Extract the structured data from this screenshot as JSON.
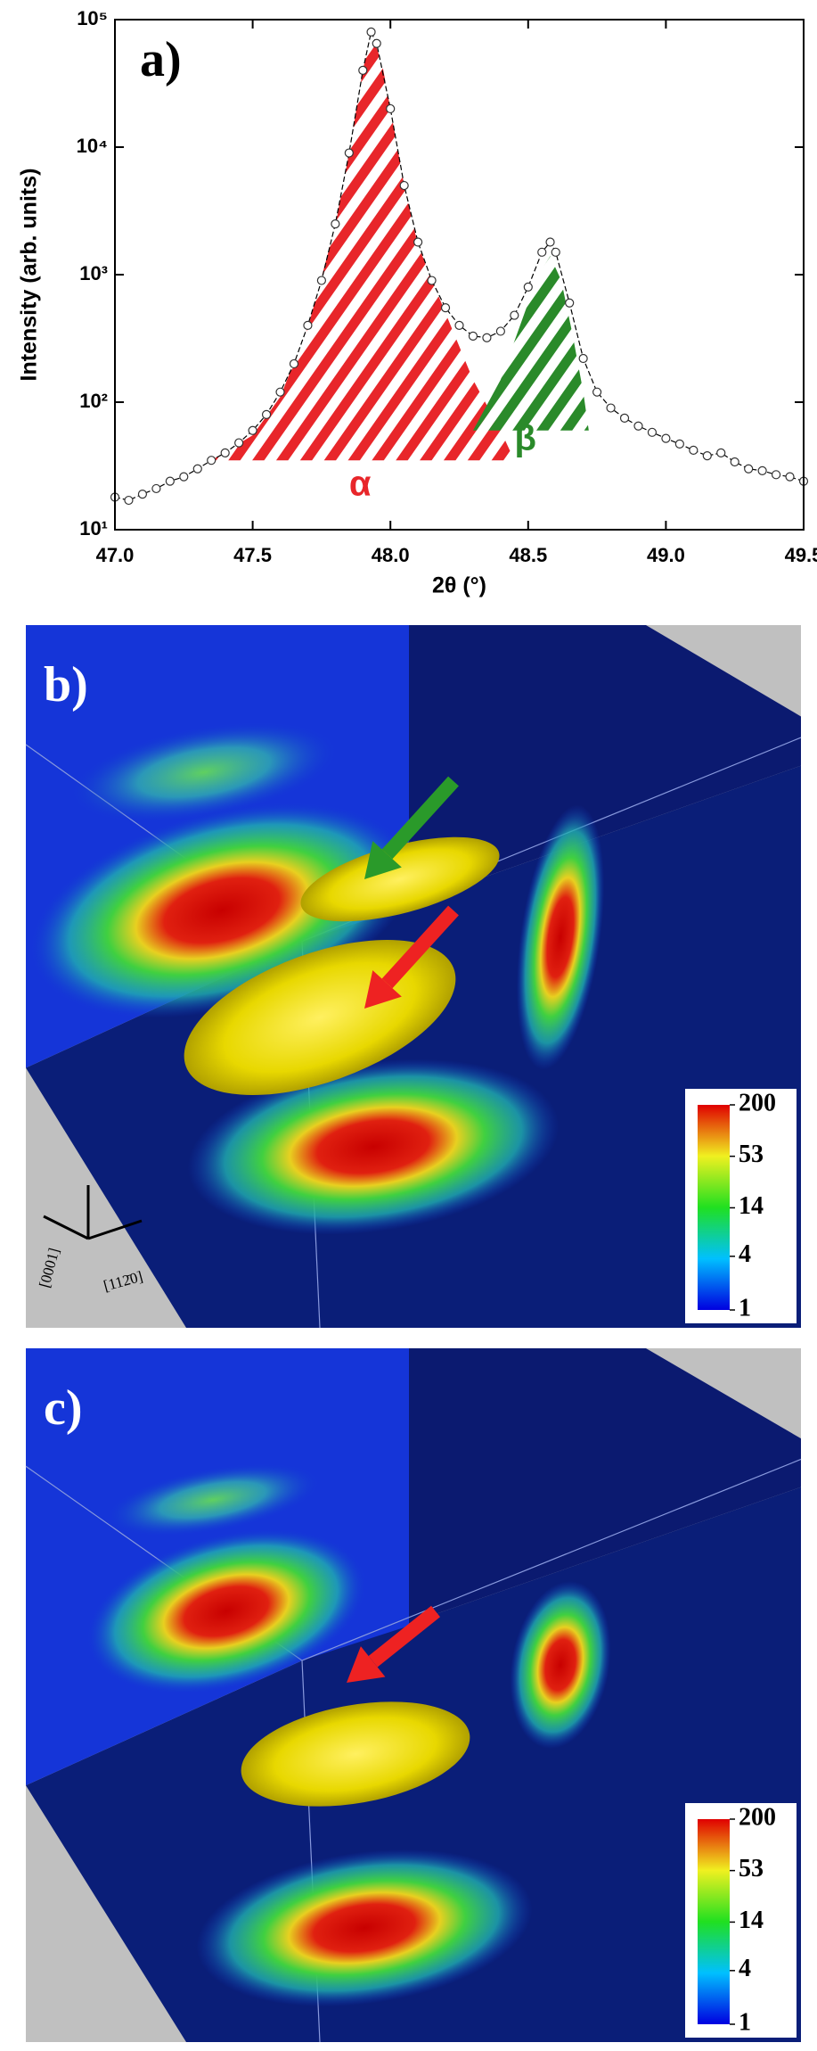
{
  "chart_data": {
    "type": "scatter",
    "panel_label": "a)",
    "x_label": "2θ (°)",
    "y_label": "Intensity (arb. units)",
    "xlim": [
      47.0,
      49.5
    ],
    "xticks": [
      {
        "value": 47.0,
        "label": "47.0"
      },
      {
        "value": 47.5,
        "label": "47.5"
      },
      {
        "value": 48.0,
        "label": "48.0"
      },
      {
        "value": 48.5,
        "label": "48.5"
      },
      {
        "value": 49.0,
        "label": "49.0"
      },
      {
        "value": 49.5,
        "label": "49.5"
      }
    ],
    "ylim": [
      10,
      100000
    ],
    "ylog": true,
    "yticks": [
      {
        "value": 10,
        "label": "10¹"
      },
      {
        "value": 100,
        "label": "10²"
      },
      {
        "value": 1000,
        "label": "10³"
      },
      {
        "value": 10000,
        "label": "10⁴"
      },
      {
        "value": 100000,
        "label": "10⁵"
      }
    ],
    "x": [
      47.0,
      47.05,
      47.1,
      47.15,
      47.2,
      47.25,
      47.3,
      47.35,
      47.4,
      47.45,
      47.5,
      47.55,
      47.6,
      47.65,
      47.7,
      47.75,
      47.8,
      47.85,
      47.9,
      47.93,
      47.95,
      48.0,
      48.05,
      48.1,
      48.15,
      48.2,
      48.25,
      48.3,
      48.35,
      48.4,
      48.45,
      48.5,
      48.55,
      48.58,
      48.6,
      48.65,
      48.7,
      48.75,
      48.8,
      48.85,
      48.9,
      48.95,
      49.0,
      49.05,
      49.1,
      49.15,
      49.2,
      49.25,
      49.3,
      49.35,
      49.4,
      49.45,
      49.5
    ],
    "values": [
      18,
      17,
      19,
      21,
      24,
      26,
      30,
      35,
      40,
      48,
      60,
      80,
      120,
      200,
      400,
      900,
      2500,
      9000,
      40000,
      80000,
      65000,
      20000,
      5000,
      1800,
      900,
      550,
      400,
      330,
      320,
      360,
      480,
      800,
      1500,
      1800,
      1500,
      600,
      220,
      120,
      90,
      75,
      65,
      58,
      52,
      47,
      42,
      38,
      40,
      34,
      30,
      29,
      27,
      26,
      24
    ],
    "point_color": "#ffffff",
    "fits": [
      {
        "label": "α",
        "color": "#e8262a",
        "x": [
          47.35,
          47.5,
          47.6,
          47.7,
          47.8,
          47.85,
          47.9,
          47.93,
          47.97,
          48.0,
          48.05,
          48.1,
          48.2,
          48.3,
          48.4,
          48.45
        ],
        "values": [
          35,
          55,
          110,
          380,
          2400,
          9000,
          40000,
          80000,
          45000,
          20000,
          5000,
          1700,
          500,
          150,
          60,
          35
        ],
        "label_x": 47.89,
        "label_y": 22
      },
      {
        "label": "β",
        "color": "#2a8a2a",
        "x": [
          48.3,
          48.4,
          48.45,
          48.5,
          48.55,
          48.58,
          48.62,
          48.66,
          48.7,
          48.72
        ],
        "values": [
          60,
          150,
          300,
          600,
          1100,
          1400,
          900,
          350,
          120,
          60
        ],
        "label_x": 48.49,
        "label_y": 50
      }
    ]
  },
  "panels": [
    {
      "label": "b)",
      "axis_up": "[0001]",
      "axis_right": "[112̄0]",
      "colorbar_lim": [
        1,
        200
      ],
      "colorbar_ticks": [
        200,
        53,
        14,
        4,
        1
      ]
    },
    {
      "label": "c)",
      "colorbar_lim": [
        1,
        200
      ],
      "colorbar_ticks": [
        200,
        53,
        14,
        4,
        1
      ]
    }
  ]
}
